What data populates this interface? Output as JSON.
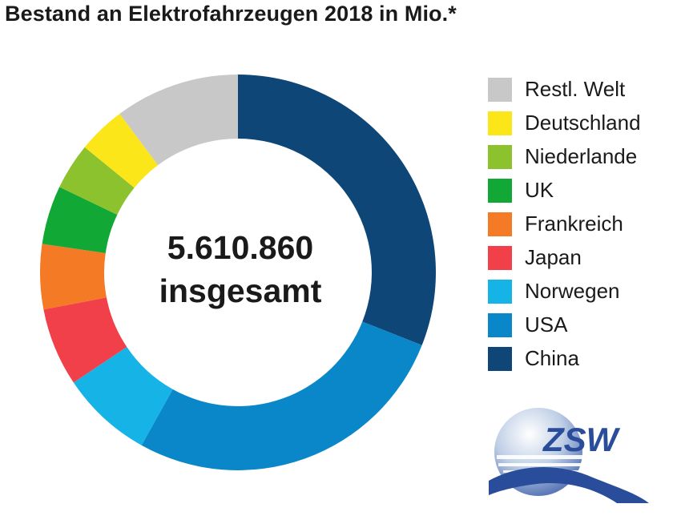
{
  "title": "Bestand an Elektrofahrzeugen 2018 in Mio.*",
  "center": {
    "line1": "5.610.860",
    "line2": "insgesamt"
  },
  "logo": {
    "text": "ZSW"
  },
  "chart_data": {
    "type": "pie",
    "style": "donut",
    "title": "Bestand an Elektrofahrzeugen 2018 in Mio.*",
    "total_label": "5.610.860 insgesamt",
    "legend_position": "right",
    "slices": [
      {
        "label": "China",
        "value": 31.0,
        "color": "#0e4777"
      },
      {
        "label": "USA",
        "value": 27.1,
        "color": "#0a87c9"
      },
      {
        "label": "Norwegen",
        "value": 7.5,
        "color": "#16b4e6"
      },
      {
        "label": "Japan",
        "value": 6.4,
        "color": "#f2404a"
      },
      {
        "label": "Frankreich",
        "value": 5.3,
        "color": "#f47a25"
      },
      {
        "label": "UK",
        "value": 4.8,
        "color": "#12a835"
      },
      {
        "label": "Niederlande",
        "value": 3.8,
        "color": "#8bc22d"
      },
      {
        "label": "Deutschland",
        "value": 3.9,
        "color": "#fbe61a"
      },
      {
        "label": "Restl. Welt",
        "value": 10.2,
        "color": "#c8c8c8"
      }
    ],
    "legend": [
      "Restl. Welt",
      "Deutschland",
      "Niederlande",
      "UK",
      "Frankreich",
      "Japan",
      "Norwegen",
      "USA",
      "China"
    ]
  }
}
